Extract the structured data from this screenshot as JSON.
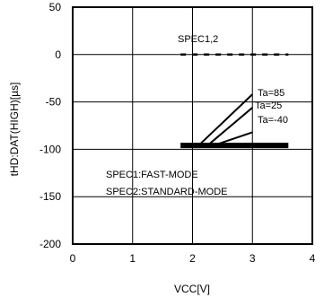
{
  "chart_data": {
    "type": "line",
    "title": "",
    "xlabel": "VCC[V]",
    "ylabel": "tHD:DAT(HIGH)[µs]",
    "xlim": [
      0,
      4
    ],
    "ylim": [
      -200,
      50
    ],
    "x_ticks": [
      0,
      1,
      2,
      3,
      4
    ],
    "y_ticks": [
      50,
      0,
      -50,
      -100,
      -150,
      -200
    ],
    "grid": true,
    "series": [
      {
        "name": "SPEC1,2",
        "style": "dashed",
        "x": [
          1.8,
          3.6
        ],
        "y": [
          0,
          0
        ]
      },
      {
        "name": "Ta=85",
        "style": "solid",
        "x": [
          2.1,
          3.0
        ],
        "y": [
          -96,
          -42
        ]
      },
      {
        "name": "Ta=25",
        "style": "solid",
        "x": [
          2.25,
          3.0
        ],
        "y": [
          -96,
          -56
        ]
      },
      {
        "name": "Ta=-40",
        "style": "solid",
        "x": [
          2.35,
          3.0
        ],
        "y": [
          -96,
          -82
        ]
      },
      {
        "name": "",
        "style": "thick",
        "x": [
          1.8,
          3.6
        ],
        "y": [
          -96,
          -96
        ]
      }
    ],
    "annotations": {
      "spec12": "SPEC1,2",
      "ta85": "Ta=85",
      "ta25": "Ta=25",
      "ta40": "Ta=-40",
      "spec1": "SPEC1:FAST-MODE",
      "spec2": "SPEC2:STANDARD-MODE"
    }
  }
}
